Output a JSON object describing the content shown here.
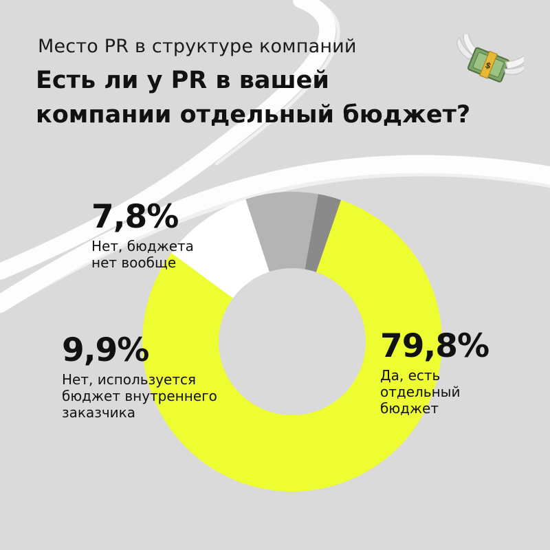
{
  "header": {
    "subtitle": "Место PR в структуре компаний",
    "title_lines": [
      "Есть ли у PR в вашей",
      "компании отдельный бюджет?"
    ]
  },
  "decoration": {
    "emoji": "money-with-wings-icon"
  },
  "colors": {
    "background": "#dadada",
    "yes": "#eefc32",
    "internal": "#ffffff",
    "no_budget": "#b4b4b4",
    "other": "#8a8a8a"
  },
  "chart_data": {
    "type": "donut",
    "title": "Есть ли у PR в вашей компании отдельный бюджет?",
    "subtitle": "Место PR в структуре компаний",
    "unit": "%",
    "slices": [
      {
        "label": "Да, есть отдельный бюджет",
        "value": 79.8,
        "value_label": "79,8%",
        "label_lines": [
          "Да, есть",
          "отдельный",
          "бюджет"
        ],
        "color": "#eefc32"
      },
      {
        "label": "Нет, используется бюджет внутреннего заказчика",
        "value": 9.9,
        "value_label": "9,9%",
        "label_lines": [
          "Нет, используется",
          "бюджет внутреннего",
          "заказчика"
        ],
        "color": "#ffffff"
      },
      {
        "label": "Нет, бюджета нет вообще",
        "value": 7.8,
        "value_label": "7,8%",
        "label_lines": [
          "Нет, бюджета",
          "нет вообще"
        ],
        "color": "#b4b4b4"
      },
      {
        "value": 2.5,
        "color": "#8a8a8a"
      }
    ]
  }
}
